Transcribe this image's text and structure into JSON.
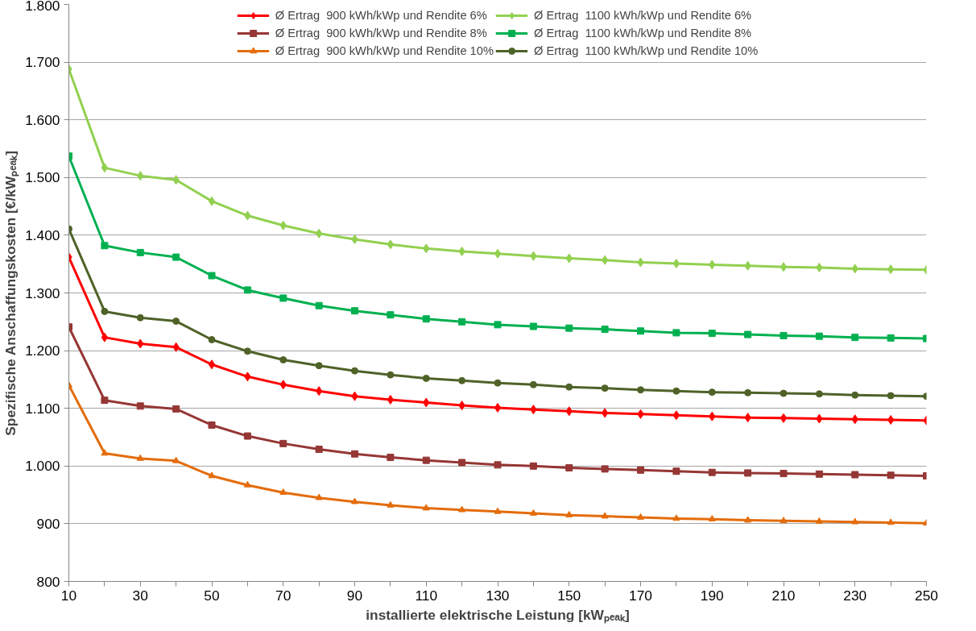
{
  "chart_data": {
    "type": "line",
    "xlabel": "installierte elektrische Leistung [kWₚₑₐₖ]",
    "ylabel": "Spezifische Anschaffungskosten [€/kWₚₑₐₖ]",
    "x": [
      10,
      20,
      30,
      40,
      50,
      60,
      70,
      80,
      90,
      100,
      110,
      120,
      130,
      140,
      150,
      160,
      170,
      180,
      190,
      200,
      210,
      220,
      230,
      240,
      250
    ],
    "xlim": [
      10,
      250
    ],
    "xticks": [
      10,
      {
        "value": 20,
        "label": null
      },
      30,
      {
        "value": 40,
        "label": null
      },
      50,
      {
        "value": 60,
        "label": null
      },
      70,
      {
        "value": 80,
        "label": null
      },
      90,
      {
        "value": 100,
        "label": null
      },
      110,
      {
        "value": 120,
        "label": null
      },
      130,
      {
        "value": 140,
        "label": null
      },
      150,
      {
        "value": 160,
        "label": null
      },
      170,
      {
        "value": 180,
        "label": null
      },
      190,
      {
        "value": 200,
        "label": null
      },
      210,
      {
        "value": 220,
        "label": null
      },
      230,
      {
        "value": 240,
        "label": null
      },
      250
    ],
    "ylim": [
      800,
      1800
    ],
    "yticks": [
      {
        "value": 800,
        "label": "800"
      },
      {
        "value": 900,
        "label": "900"
      },
      {
        "value": 1000,
        "label": "1.000"
      },
      {
        "value": 1100,
        "label": "1.100"
      },
      {
        "value": 1200,
        "label": "1.200"
      },
      {
        "value": 1300,
        "label": "1.300"
      },
      {
        "value": 1400,
        "label": "1.400"
      },
      {
        "value": 1500,
        "label": "1.500"
      },
      {
        "value": 1600,
        "label": "1.600"
      },
      {
        "value": 1700,
        "label": "1.700"
      },
      {
        "value": 1800,
        "label": "1.800"
      }
    ],
    "grid": "y",
    "legend": "top",
    "line_style": "solid",
    "series": [
      {
        "name": "Ø Ertrag  900 kWh/kWp und Rendite 6%",
        "color": "#ff0000",
        "marker": "diamond",
        "values": [
          1362,
          1223,
          1212,
          1206,
          1176,
          1155,
          1141,
          1130,
          1121,
          1115,
          1110,
          1105,
          1101,
          1098,
          1095,
          1092,
          1090,
          1088,
          1086,
          1084,
          1083,
          1082,
          1081,
          1080,
          1079
        ]
      },
      {
        "name": "Ø Ertrag  900 kWh/kWp und Rendite 8%",
        "color": "#953735",
        "marker": "square",
        "values": [
          1241,
          1114,
          1104,
          1099,
          1071,
          1052,
          1039,
          1029,
          1021,
          1015,
          1010,
          1006,
          1002,
          1000,
          997,
          995,
          993,
          991,
          989,
          988,
          987,
          986,
          985,
          984,
          983
        ]
      },
      {
        "name": "Ø Ertrag  900 kWh/kWp und Rendite 10%",
        "color": "#e46c0a",
        "marker": "triangle",
        "values": [
          1140,
          1022,
          1013,
          1009,
          983,
          967,
          954,
          945,
          938,
          932,
          927,
          924,
          921,
          918,
          915,
          913,
          911,
          909,
          908,
          906,
          905,
          904,
          903,
          902,
          901
        ]
      },
      {
        "name": "Ø Ertrag  1100 kWh/kWp und Rendite 6%",
        "color": "#92d050",
        "marker": "diamond",
        "values": [
          1688,
          1517,
          1503,
          1496,
          1459,
          1434,
          1417,
          1403,
          1393,
          1384,
          1377,
          1372,
          1368,
          1364,
          1360,
          1357,
          1353,
          1351,
          1349,
          1347,
          1345,
          1344,
          1342,
          1341,
          1340
        ]
      },
      {
        "name": "Ø Ertrag  1100 kWh/kWp und Rendite 8%",
        "color": "#00b050",
        "marker": "square",
        "values": [
          1537,
          1382,
          1370,
          1362,
          1330,
          1305,
          1291,
          1278,
          1269,
          1262,
          1255,
          1250,
          1245,
          1242,
          1239,
          1237,
          1234,
          1231,
          1230,
          1228,
          1226,
          1225,
          1223,
          1222,
          1221
        ]
      },
      {
        "name": "Ø Ertrag  1100 kWh/kWp und Rendite 10%",
        "color": "#4f6228",
        "marker": "circle",
        "values": [
          1411,
          1268,
          1257,
          1251,
          1219,
          1199,
          1184,
          1174,
          1165,
          1158,
          1152,
          1148,
          1144,
          1141,
          1137,
          1135,
          1132,
          1130,
          1128,
          1127,
          1126,
          1125,
          1123,
          1122,
          1121
        ]
      }
    ]
  }
}
